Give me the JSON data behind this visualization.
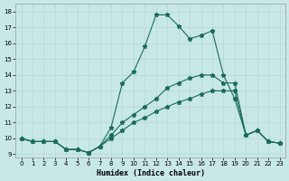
{
  "xlabel": "Humidex (Indice chaleur)",
  "xlim": [
    -0.5,
    23.5
  ],
  "ylim": [
    8.8,
    18.5
  ],
  "xticks": [
    0,
    1,
    2,
    3,
    4,
    5,
    6,
    7,
    8,
    9,
    10,
    11,
    12,
    13,
    14,
    15,
    16,
    17,
    18,
    19,
    20,
    21,
    22,
    23
  ],
  "yticks": [
    9,
    10,
    11,
    12,
    13,
    14,
    15,
    16,
    17,
    18
  ],
  "background_color": "#c8e8e8",
  "grid_color": "#b8d8d8",
  "line_color": "#1a6b5a",
  "line1_y": [
    10.0,
    9.8,
    9.8,
    9.8,
    9.3,
    9.3,
    9.1,
    9.5,
    10.7,
    13.5,
    14.2,
    15.8,
    17.8,
    17.8,
    17.1,
    16.3,
    16.5,
    16.8,
    14.0,
    12.5,
    10.2,
    10.5,
    9.8,
    9.7
  ],
  "line2_y": [
    10.0,
    9.8,
    9.8,
    9.8,
    9.3,
    9.3,
    9.1,
    9.5,
    10.2,
    11.0,
    11.5,
    12.0,
    12.5,
    13.2,
    13.5,
    13.8,
    14.0,
    14.0,
    13.5,
    13.5,
    10.2,
    10.5,
    9.8,
    9.7
  ],
  "line3_y": [
    10.0,
    9.8,
    9.8,
    9.8,
    9.3,
    9.3,
    9.1,
    9.5,
    10.0,
    10.5,
    11.0,
    11.3,
    11.7,
    12.0,
    12.3,
    12.5,
    12.8,
    13.0,
    13.0,
    13.0,
    10.2,
    10.5,
    9.8,
    9.7
  ]
}
